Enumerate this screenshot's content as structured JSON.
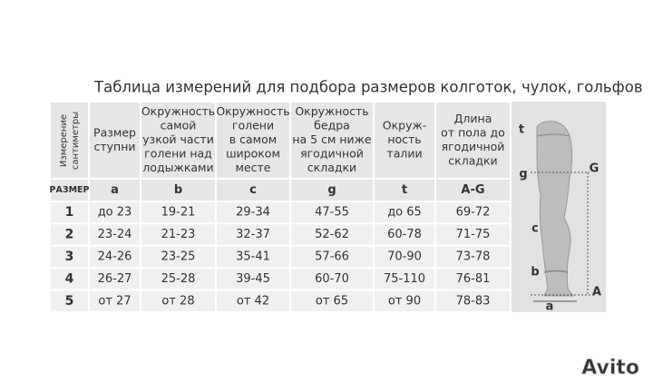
{
  "title": "Таблица измерений для подбора размеров колготок, чулок, гольфов",
  "corner_header": [
    "Измерение",
    "сантиметры"
  ],
  "column_headers": [
    [
      "Размер",
      "ступни"
    ],
    [
      "Окружность",
      "самой",
      "узкой части",
      "голени над",
      "лодыжками"
    ],
    [
      "Окружность",
      "голени",
      "в самом",
      "широком",
      "месте"
    ],
    [
      "Окружность",
      "бедра",
      "на 5 см ниже",
      "ягодичной",
      "складки"
    ],
    [
      "Окруж-",
      "ность",
      "талии"
    ],
    [
      "Длина",
      "от пола до",
      "ягодичной",
      "складки"
    ]
  ],
  "letter_row": [
    "РАЗМЕР",
    "a",
    "b",
    "c",
    "g",
    "t",
    "A-G"
  ],
  "rows": [
    [
      "1",
      "до 23",
      "19-21",
      "29-34",
      "47-55",
      "до 65",
      "69-72"
    ],
    [
      "2",
      "23-24",
      "21-23",
      "32-37",
      "52-62",
      "60-78",
      "71-75"
    ],
    [
      "3",
      "24-26",
      "23-25",
      "35-41",
      "57-66",
      "70-90",
      "73-78"
    ],
    [
      "4",
      "26-27",
      "25-28",
      "39-45",
      "60-70",
      "75-110",
      "76-81"
    ],
    [
      "5",
      "от 27",
      "от 28",
      "от 42",
      "от 65",
      "от 90",
      "78-83"
    ]
  ],
  "diagram": {
    "labels": [
      "t",
      "g",
      "G",
      "c",
      "b",
      "A",
      "a"
    ]
  },
  "watermark": "Avito"
}
